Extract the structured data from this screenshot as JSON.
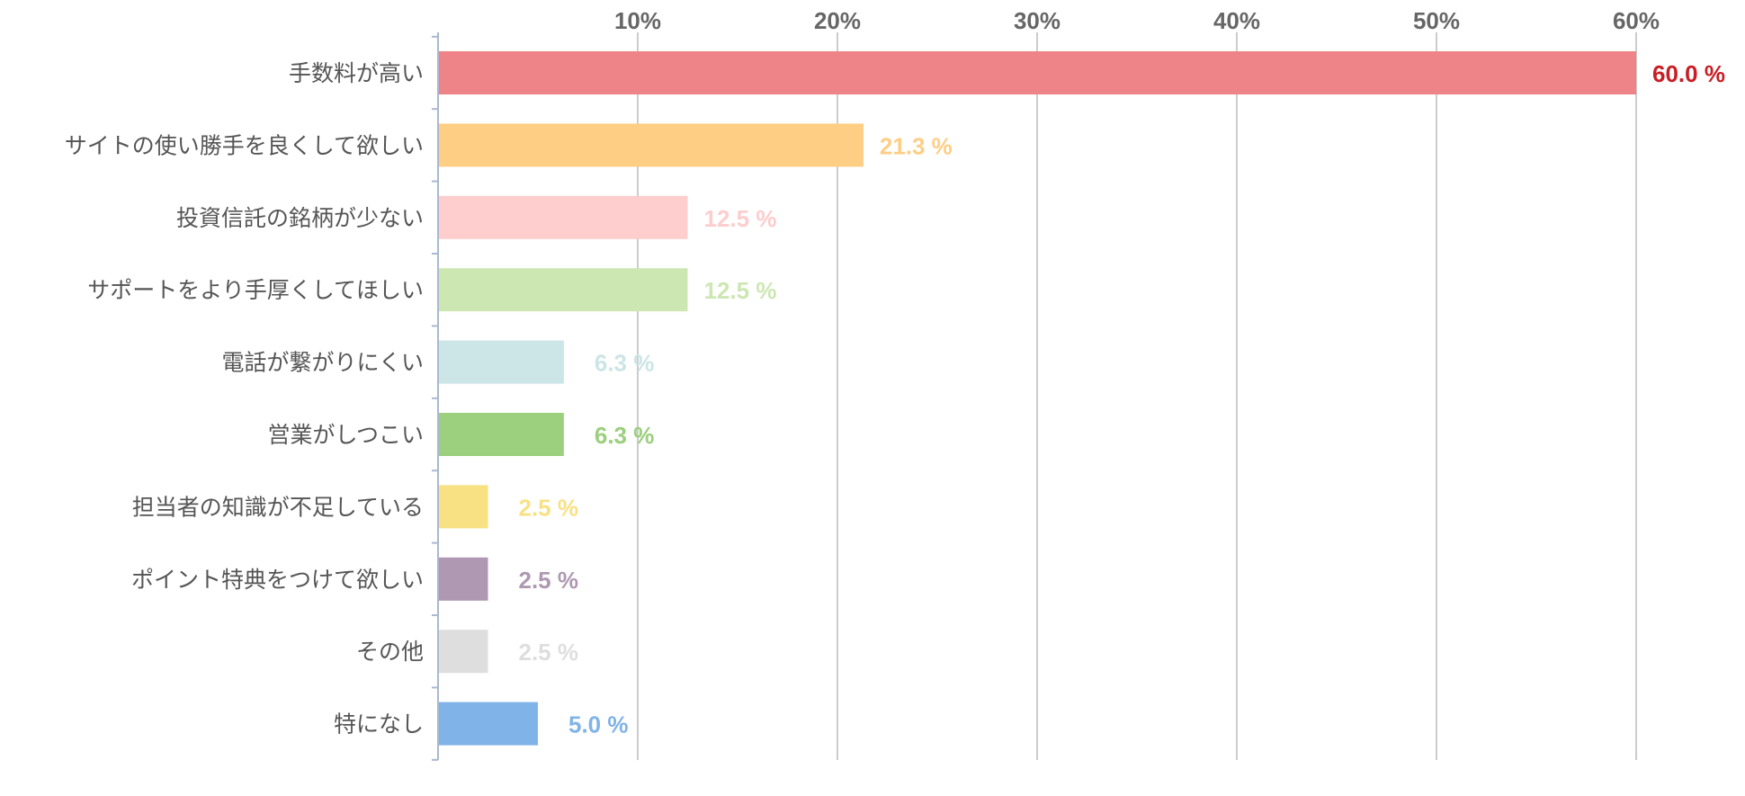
{
  "chart_data": {
    "type": "bar",
    "orientation": "horizontal",
    "title": "",
    "xlabel": "",
    "ylabel": "",
    "xlim": [
      0,
      65
    ],
    "grid": true,
    "tick_position": "top",
    "ticks": [
      {
        "value": 10,
        "label": "10%"
      },
      {
        "value": 20,
        "label": "20%"
      },
      {
        "value": 30,
        "label": "30%"
      },
      {
        "value": 40,
        "label": "40%"
      },
      {
        "value": 50,
        "label": "50%"
      },
      {
        "value": 60,
        "label": "60%"
      }
    ],
    "categories": [
      "手数料が高い",
      "サイトの使い勝手を良くして欲しい",
      "投資信託の銘柄が少ない",
      "サポートをより手厚くしてほしい",
      "電話が繋がりにくい",
      "営業がしつこい",
      "担当者の知識が不足している",
      "ポイント特典をつけて欲しい",
      "その他",
      "特になし"
    ],
    "values": [
      60.0,
      21.3,
      12.5,
      12.5,
      6.3,
      6.3,
      2.5,
      2.5,
      2.5,
      5.0
    ],
    "value_labels": [
      "60.0 %",
      "21.3 %",
      "12.5 %",
      "12.5 %",
      "6.3 %",
      "6.3 %",
      "2.5 %",
      "2.5 %",
      "2.5 %",
      "5.0 %"
    ],
    "bar_colors": [
      "#ee8488",
      "#fece85",
      "#fecdcd",
      "#cde7b3",
      "#cce5e6",
      "#9ccf7e",
      "#f8e183",
      "#af98b1",
      "#dedede",
      "#80b3e7"
    ],
    "label_colors": [
      "#c81e24",
      "#fece85",
      "#fecdcd",
      "#cde7b3",
      "#cce5e6",
      "#9ccf7e",
      "#f8e183",
      "#af98b1",
      "#dedede",
      "#80b3e7"
    ],
    "axis_color": "#aab8d0",
    "grid_color": "#bbbbbb"
  }
}
